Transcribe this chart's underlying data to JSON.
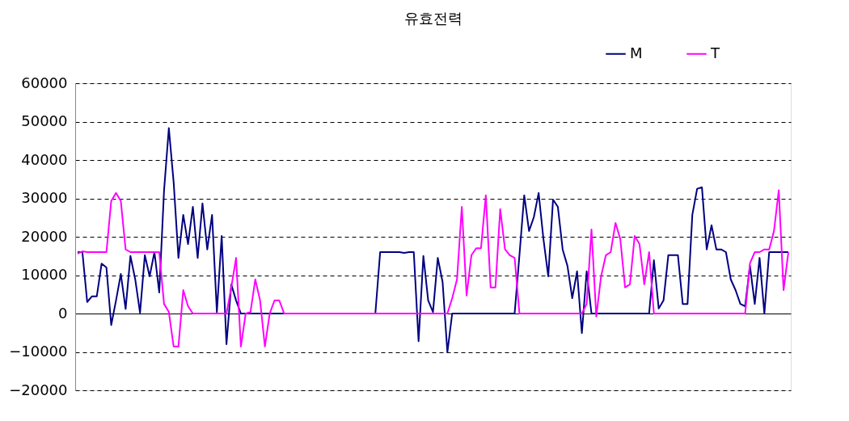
{
  "chart_data": {
    "type": "line",
    "title": "유효전력",
    "categories": [
      null,
      null,
      null,
      null,
      null,
      null,
      null,
      null,
      null,
      null,
      null,
      null,
      null,
      null,
      null,
      null,
      null,
      null,
      null,
      null,
      null,
      null,
      null,
      null,
      null,
      null,
      null,
      null,
      null,
      null,
      null,
      null,
      null,
      null,
      null,
      null,
      null,
      null,
      null,
      null,
      null,
      null,
      null,
      null,
      null,
      null,
      null,
      null,
      null,
      null,
      null,
      null,
      null,
      null,
      null,
      null,
      null,
      null,
      null,
      null,
      null,
      null,
      null,
      null,
      null,
      null,
      null,
      null,
      null,
      null,
      null,
      null,
      null,
      null,
      null,
      null,
      null,
      null,
      null,
      null,
      null,
      null,
      null,
      null,
      null,
      null,
      null,
      null,
      null,
      null,
      null,
      null,
      null,
      null,
      null,
      null,
      null,
      null,
      null,
      null,
      null,
      null,
      null,
      null,
      null,
      null,
      null,
      null,
      null,
      null,
      null,
      null,
      null,
      null,
      null,
      null,
      null,
      null,
      null,
      null,
      null,
      null,
      null,
      null,
      null,
      null,
      null,
      null,
      null,
      null,
      null,
      null,
      null,
      null,
      null,
      null,
      null,
      null,
      null,
      null,
      null,
      null,
      null,
      null,
      null,
      null,
      null,
      null,
      null
    ],
    "series": [
      {
        "name": "M",
        "color": "#000080",
        "values": [
          16000,
          16000,
          3000,
          4500,
          4500,
          13000,
          12000,
          -3000,
          3400,
          10300,
          1200,
          15000,
          8900,
          200,
          15200,
          9700,
          16000,
          5500,
          32000,
          48300,
          34200,
          14500,
          25700,
          18100,
          27800,
          14500,
          28700,
          16700,
          25700,
          400,
          20200,
          -8000,
          7600,
          3400,
          0,
          0,
          0,
          0,
          0,
          0,
          0,
          0,
          0,
          0,
          0,
          0,
          0,
          0,
          0,
          0,
          0,
          0,
          0,
          0,
          0,
          0,
          0,
          0,
          0,
          0,
          0,
          0,
          0,
          16000,
          16000,
          16000,
          16000,
          16000,
          15800,
          16000,
          16000,
          -7200,
          15000,
          3400,
          400,
          14500,
          8200,
          -10100,
          0,
          0,
          0,
          0,
          0,
          0,
          0,
          0,
          0,
          0,
          0,
          0,
          0,
          0,
          15200,
          30800,
          21500,
          25100,
          31400,
          19400,
          9700,
          29700,
          27800,
          16700,
          12400,
          4000,
          11000,
          -5100,
          11000,
          0,
          0,
          0,
          0,
          0,
          0,
          0,
          0,
          0,
          0,
          0,
          0,
          0,
          13900,
          1300,
          3400,
          15200,
          15200,
          15200,
          2500,
          2500,
          25700,
          32500,
          32900,
          16700,
          23000,
          16700,
          16700,
          16000,
          8900,
          6100,
          2500,
          1900,
          12400,
          2500,
          14500,
          0,
          16000,
          16000,
          16000,
          16000,
          16000
        ]
      },
      {
        "name": "T",
        "color": "#ff00ff",
        "values": [
          15600,
          16200,
          16000,
          16000,
          16000,
          16000,
          16000,
          29300,
          31400,
          29300,
          16700,
          16000,
          16000,
          16000,
          16000,
          16000,
          16000,
          16000,
          2500,
          400,
          -8600,
          -8600,
          6100,
          1900,
          0,
          0,
          0,
          0,
          0,
          0,
          0,
          0,
          6800,
          14500,
          -8600,
          0,
          400,
          8900,
          3400,
          -8600,
          0,
          3400,
          3400,
          0,
          0,
          0,
          0,
          0,
          0,
          0,
          0,
          0,
          0,
          0,
          0,
          0,
          0,
          0,
          0,
          0,
          0,
          0,
          0,
          0,
          0,
          0,
          0,
          0,
          0,
          0,
          0,
          0,
          0,
          0,
          0,
          0,
          0,
          0,
          4000,
          8900,
          27800,
          4700,
          15200,
          17000,
          17000,
          30800,
          6800,
          6800,
          27200,
          16700,
          15200,
          14500,
          0,
          0,
          0,
          0,
          0,
          0,
          0,
          0,
          0,
          0,
          0,
          0,
          0,
          0,
          2500,
          21900,
          -800,
          9700,
          15200,
          16000,
          23600,
          19400,
          6800,
          7600,
          20200,
          18100,
          7600,
          16000,
          0,
          0,
          0,
          0,
          0,
          0,
          0,
          0,
          0,
          0,
          0,
          0,
          0,
          0,
          0,
          0,
          0,
          0,
          0,
          0,
          13100,
          16000,
          16000,
          16700,
          16700,
          21500,
          32100,
          6100,
          16000
        ]
      }
    ],
    "ylim": [
      -20000,
      60000
    ],
    "yticks": [
      -20000,
      -10000,
      0,
      10000,
      20000,
      30000,
      40000,
      50000,
      60000
    ],
    "grid": "y",
    "legend": "top right",
    "tick_labels": "y"
  }
}
